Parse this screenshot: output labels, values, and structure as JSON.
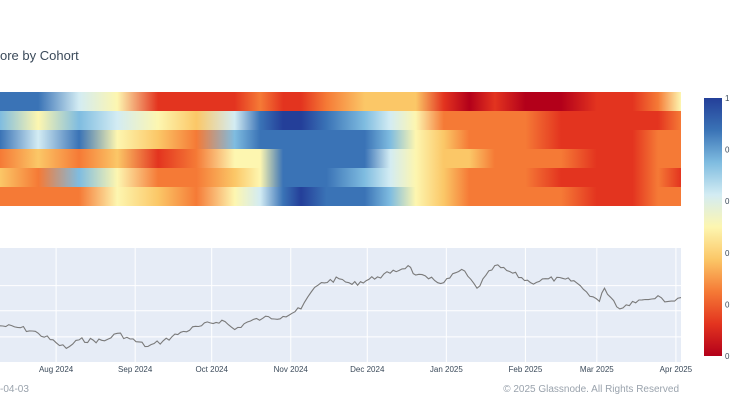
{
  "chart_data": [
    {
      "type": "heatmap",
      "title": "ore by Cohort",
      "rows": 6,
      "colorbar": {
        "min": 0,
        "max": 1,
        "tick_labels": [
          "0",
          "0",
          "0",
          "0",
          "0",
          "1"
        ]
      },
      "colors": [
        "#b3001a",
        "#e3341f",
        "#f57a36",
        "#fbc767",
        "#fdf6b0",
        "#d3ecf3",
        "#7fbce0",
        "#3a73b6",
        "#243f99"
      ],
      "score_anchors": {
        "x": [
          "2024-07-10",
          "2024-07-25",
          "2024-08-10",
          "2024-08-25",
          "2024-09-10",
          "2024-09-25",
          "2024-10-10",
          "2024-10-20",
          "2024-10-29",
          "2024-11-05",
          "2024-11-15",
          "2024-11-30",
          "2024-12-10",
          "2024-12-20",
          "2024-12-31",
          "2025-01-10",
          "2025-01-20",
          "2025-02-01",
          "2025-02-15",
          "2025-03-01",
          "2025-03-15",
          "2025-03-25",
          "2025-04-03"
        ],
        "rows": [
          [
            0.9,
            0.92,
            0.6,
            0.45,
            0.1,
            0.12,
            0.14,
            0.2,
            0.18,
            0.15,
            0.25,
            0.35,
            0.4,
            0.32,
            0.12,
            0.05,
            0.08,
            0.05,
            0.06,
            0.08,
            0.1,
            0.3,
            0.55
          ],
          [
            0.8,
            0.55,
            0.7,
            0.62,
            0.5,
            0.35,
            0.6,
            0.85,
            0.95,
            0.95,
            0.88,
            0.8,
            0.65,
            0.55,
            0.25,
            0.2,
            0.3,
            0.22,
            0.18,
            0.15,
            0.12,
            0.18,
            0.22
          ],
          [
            0.85,
            0.6,
            0.9,
            0.55,
            0.4,
            0.3,
            0.75,
            0.85,
            0.9,
            0.92,
            0.9,
            0.85,
            0.7,
            0.5,
            0.35,
            0.25,
            0.3,
            0.2,
            0.15,
            0.18,
            0.15,
            0.2,
            0.25
          ],
          [
            0.3,
            0.4,
            0.2,
            0.35,
            0.15,
            0.25,
            0.45,
            0.5,
            0.85,
            0.92,
            0.9,
            0.88,
            0.6,
            0.45,
            0.4,
            0.35,
            0.3,
            0.25,
            0.2,
            0.15,
            0.18,
            0.22,
            0.2
          ],
          [
            0.35,
            0.25,
            0.7,
            0.45,
            0.3,
            0.2,
            0.4,
            0.55,
            0.88,
            0.92,
            0.85,
            0.8,
            0.6,
            0.48,
            0.4,
            0.3,
            0.28,
            0.2,
            0.18,
            0.15,
            0.14,
            0.2,
            0.18
          ],
          [
            0.25,
            0.3,
            0.2,
            0.45,
            0.35,
            0.3,
            0.5,
            0.65,
            0.9,
            0.95,
            0.9,
            0.85,
            0.75,
            0.5,
            0.4,
            0.3,
            0.28,
            0.22,
            0.2,
            0.18,
            0.16,
            0.2,
            0.22
          ]
        ]
      }
    },
    {
      "type": "line",
      "x_tick_labels": [
        "Aug 2024",
        "Sep 2024",
        "Oct 2024",
        "Nov 2024",
        "Dec 2024",
        "Jan 2025",
        "Feb 2025",
        "Mar 2025",
        "Apr 2025"
      ],
      "x_range": [
        "2024-07-10",
        "2025-04-03"
      ],
      "y_range": [
        0,
        1
      ],
      "series": [
        {
          "x": [
            "2024-07-10",
            "2024-07-18",
            "2024-07-25",
            "2024-08-01",
            "2024-08-05",
            "2024-08-10",
            "2024-08-20",
            "2024-08-25",
            "2024-08-30",
            "2024-09-06",
            "2024-09-12",
            "2024-09-20",
            "2024-09-27",
            "2024-10-05",
            "2024-10-10",
            "2024-10-15",
            "2024-10-21",
            "2024-10-29",
            "2024-11-05",
            "2024-11-09",
            "2024-11-13",
            "2024-11-20",
            "2024-11-25",
            "2024-12-05",
            "2024-12-10",
            "2024-12-17",
            "2024-12-20",
            "2024-12-25",
            "2024-12-31",
            "2025-01-07",
            "2025-01-13",
            "2025-01-20",
            "2025-01-27",
            "2025-02-03",
            "2025-02-10",
            "2025-02-20",
            "2025-02-25",
            "2025-03-02",
            "2025-03-04",
            "2025-03-10",
            "2025-03-15",
            "2025-03-20",
            "2025-03-25",
            "2025-03-29",
            "2025-04-03"
          ],
          "y": [
            0.3,
            0.28,
            0.22,
            0.12,
            0.06,
            0.15,
            0.14,
            0.22,
            0.16,
            0.08,
            0.14,
            0.24,
            0.3,
            0.36,
            0.26,
            0.34,
            0.38,
            0.4,
            0.48,
            0.66,
            0.76,
            0.8,
            0.74,
            0.82,
            0.86,
            0.94,
            0.84,
            0.8,
            0.76,
            0.9,
            0.7,
            0.94,
            0.86,
            0.76,
            0.8,
            0.78,
            0.66,
            0.56,
            0.7,
            0.48,
            0.56,
            0.58,
            0.62,
            0.56,
            0.6
          ]
        }
      ]
    }
  ],
  "footer": {
    "date": "-04-03",
    "copyright": "© 2025 Glassnode. All Rights Reserved"
  }
}
